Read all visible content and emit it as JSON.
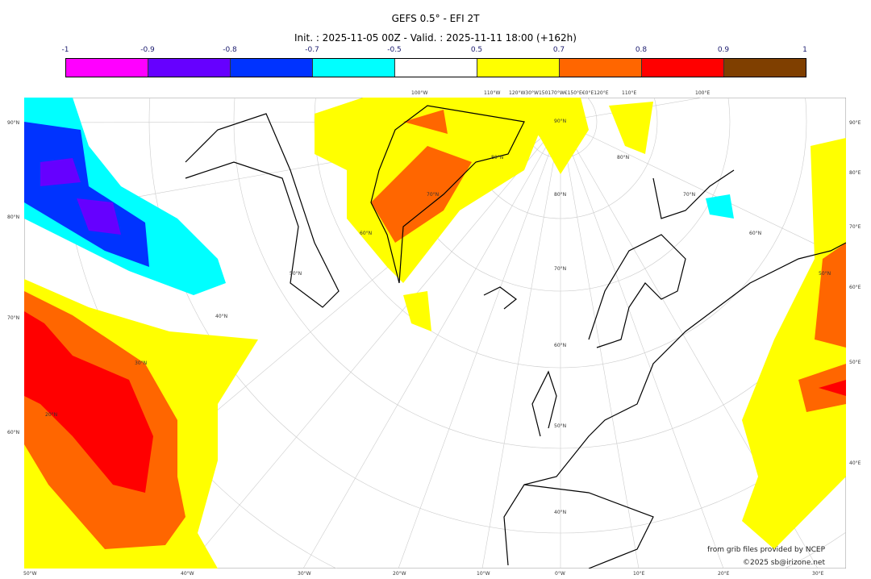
{
  "title": "GEFS 0.5° - EFI 2T",
  "subtitle": "Init. : 2025-11-05 00Z - Valid. : 2025-11-11 18:00 (+162h)",
  "colorbar": {
    "ticks": [
      "-1",
      "-0.9",
      "-0.8",
      "-0.7",
      "-0.5",
      "0.5",
      "0.7",
      "0.8",
      "0.9",
      "1"
    ],
    "colors": [
      "#ff00ff",
      "#6600ff",
      "#0033ff",
      "#00ffff",
      "#ffffff",
      "#ffff00",
      "#ff6600",
      "#ff0000",
      "#7f3f00"
    ]
  },
  "axes": {
    "left": [
      "90°N",
      "80°N",
      "70°N",
      "60°N"
    ],
    "right": [
      "90°E",
      "80°E",
      "70°E",
      "60°E",
      "50°E",
      "40°E"
    ],
    "bottom": [
      "50°W",
      "40°W",
      "30°W",
      "20°W",
      "10°W",
      "0°W",
      "10°E",
      "20°E",
      "30°E"
    ],
    "top": [
      "100°W",
      "110°W",
      "120°W30°W150170°W€150°E€0°E120°E",
      "110°E",
      "100°E"
    ],
    "inner": [
      "90°N",
      "80°N",
      "70°N",
      "60°N",
      "50°N",
      "40°N",
      "30°N",
      "20°N",
      "80°N",
      "70°N",
      "60°N",
      "50°N",
      "80°N",
      "70°N",
      "60°N",
      "50°N",
      "40°N"
    ]
  },
  "credits": {
    "line1": "from grib files provided by NCEP",
    "line2": "©2025 sb@irizone.net"
  }
}
